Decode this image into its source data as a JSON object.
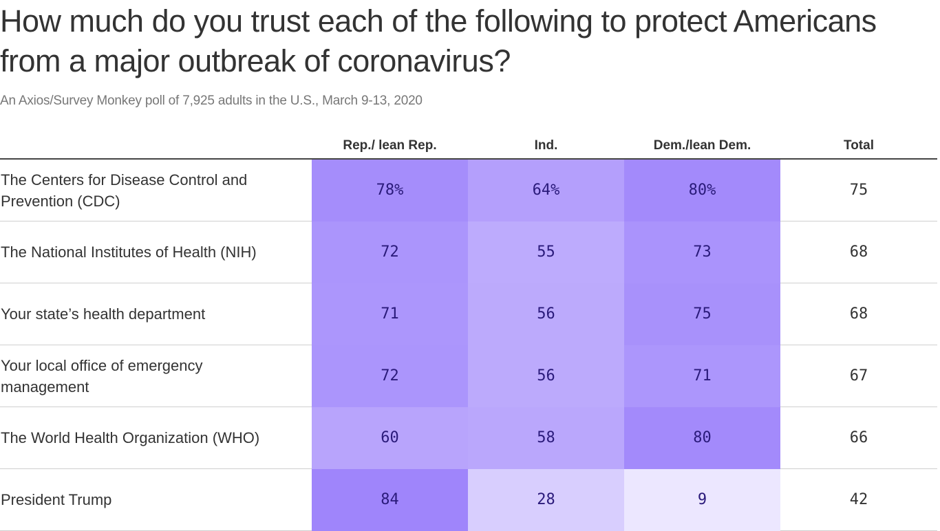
{
  "title": "How much do you trust each of the following to protect Americans from a major outbreak of coronavirus?",
  "subtitle": "An Axios/Survey Monkey poll of 7,925 adults in the U.S., March 9-13, 2020",
  "colors": {
    "heat_low": "#ece7ff",
    "heat_high": "#9f85fb",
    "cell_text": "#2a1a7a"
  },
  "chart_data": {
    "type": "heatmap",
    "columns": [
      "Rep./ lean Rep.",
      "Ind.",
      "Dem./lean Dem.",
      "Total"
    ],
    "rows": [
      {
        "label": "The Centers for Disease Control and Prevention (CDC)",
        "values": [
          78,
          64,
          80,
          75
        ],
        "display": [
          "78%",
          "64%",
          "80%",
          "75"
        ]
      },
      {
        "label": "The National Institutes of Health (NIH)",
        "values": [
          72,
          55,
          73,
          68
        ],
        "display": [
          "72",
          "55",
          "73",
          "68"
        ]
      },
      {
        "label": "Your state’s health department",
        "values": [
          71,
          56,
          75,
          68
        ],
        "display": [
          "71",
          "56",
          "75",
          "68"
        ]
      },
      {
        "label": "Your local office of emergency management",
        "values": [
          72,
          56,
          71,
          67
        ],
        "display": [
          "72",
          "56",
          "71",
          "67"
        ]
      },
      {
        "label": "The World Health Organization (WHO)",
        "values": [
          60,
          58,
          80,
          66
        ],
        "display": [
          "60",
          "58",
          "80",
          "66"
        ]
      },
      {
        "label": "President Trump",
        "values": [
          84,
          28,
          9,
          42
        ],
        "display": [
          "84",
          "28",
          "9",
          "42"
        ]
      }
    ],
    "shaded_columns": [
      "Rep./ lean Rep.",
      "Ind.",
      "Dem./lean Dem."
    ],
    "unit": "%"
  }
}
